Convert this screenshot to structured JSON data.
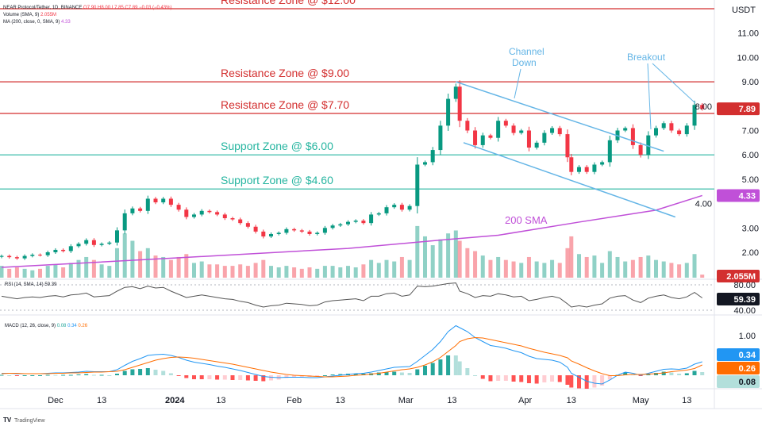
{
  "header": {
    "symbol_line": "NEAR Protocol/Tether, 1D, BINANCE",
    "ohlc": "O7.90 H8.00 L7.85 C7.89 −0.03 (−0.43%)",
    "volume_legend": "Volume (SMA, 9)",
    "volume_value": "2.055M",
    "ma_legend": "MA (200, close, 0, SMA, 9)",
    "ma_value": "4.33",
    "rsi_legend": "RSI (14, SMA, 14)",
    "rsi_value": "59.39",
    "macd_legend": "MACD (12, 26, close, 9)",
    "macd_hist_value": "0.08",
    "macd_value": "0.34",
    "signal_value": "0.26"
  },
  "currency": "USDT",
  "footer": {
    "brand": "TradingView"
  },
  "colors": {
    "up": "#089981",
    "down": "#f23645",
    "sma": "#c050d8",
    "resistance": "#d32f2f",
    "support": "#26b5a0",
    "annotation": "#64b5e6",
    "rsi": "#555555",
    "macd": "#2196f3",
    "signal": "#ff6d00"
  },
  "chart_data": {
    "type": "candlestick",
    "price_axis": {
      "ticks": [
        "11.00",
        "10.00",
        "9.00",
        "8.00",
        "7.00",
        "6.00",
        "5.00",
        "4.00",
        "3.00",
        "2.00"
      ],
      "range": [
        1.2,
        12.4
      ]
    },
    "time_axis": [
      {
        "date": "2023-12-01",
        "label": "Dec"
      },
      {
        "date": "2023-12-13",
        "label": "13"
      },
      {
        "date": "2024-01-01",
        "label": "2024"
      },
      {
        "date": "2024-01-13",
        "label": "13"
      },
      {
        "date": "2024-02-01",
        "label": "Feb"
      },
      {
        "date": "2024-02-13",
        "label": "13"
      },
      {
        "date": "2024-03-01",
        "label": "Mar"
      },
      {
        "date": "2024-03-13",
        "label": "13"
      },
      {
        "date": "2024-04-01",
        "label": "Apr"
      },
      {
        "date": "2024-04-13",
        "label": "13"
      },
      {
        "date": "2024-05-01",
        "label": "May"
      },
      {
        "date": "2024-05-13",
        "label": "13"
      }
    ],
    "columns": [
      "date",
      "close",
      "volume_m",
      "rsi",
      "macd",
      "signal"
    ],
    "rows": [
      [
        "2023-11-17",
        1.85,
        8,
        62,
        0.05,
        0.04
      ],
      [
        "2023-11-19",
        1.8,
        6,
        60,
        0.05,
        0.05
      ],
      [
        "2023-11-21",
        1.75,
        7,
        58,
        0.04,
        0.05
      ],
      [
        "2023-11-23",
        1.85,
        6,
        60,
        0.04,
        0.04
      ],
      [
        "2023-11-25",
        1.9,
        5,
        61,
        0.04,
        0.04
      ],
      [
        "2023-11-27",
        1.88,
        6,
        60,
        0.04,
        0.04
      ],
      [
        "2023-11-29",
        2.0,
        8,
        62,
        0.05,
        0.04
      ],
      [
        "2023-12-01",
        2.1,
        9,
        63,
        0.06,
        0.05
      ],
      [
        "2023-12-03",
        2.05,
        7,
        61,
        0.06,
        0.05
      ],
      [
        "2023-12-05",
        2.25,
        10,
        64,
        0.07,
        0.06
      ],
      [
        "2023-12-07",
        2.35,
        12,
        65,
        0.08,
        0.06
      ],
      [
        "2023-12-09",
        2.5,
        14,
        67,
        0.1,
        0.07
      ],
      [
        "2023-12-11",
        2.3,
        12,
        61,
        0.09,
        0.08
      ],
      [
        "2023-12-13",
        2.35,
        9,
        62,
        0.09,
        0.08
      ],
      [
        "2023-12-15",
        2.4,
        8,
        63,
        0.09,
        0.09
      ],
      [
        "2023-12-17",
        2.9,
        20,
        70,
        0.14,
        0.1
      ],
      [
        "2023-12-19",
        3.6,
        30,
        76,
        0.25,
        0.14
      ],
      [
        "2023-12-21",
        3.8,
        25,
        77,
        0.35,
        0.2
      ],
      [
        "2023-12-23",
        3.7,
        18,
        74,
        0.42,
        0.26
      ],
      [
        "2023-12-25",
        4.2,
        20,
        78,
        0.5,
        0.32
      ],
      [
        "2023-12-27",
        4.05,
        15,
        75,
        0.52,
        0.38
      ],
      [
        "2023-12-29",
        4.2,
        14,
        76,
        0.53,
        0.42
      ],
      [
        "2023-12-31",
        3.95,
        12,
        70,
        0.5,
        0.45
      ],
      [
        "2024-01-02",
        3.75,
        14,
        65,
        0.45,
        0.46
      ],
      [
        "2024-01-04",
        3.45,
        16,
        60,
        0.38,
        0.45
      ],
      [
        "2024-01-06",
        3.55,
        10,
        62,
        0.33,
        0.43
      ],
      [
        "2024-01-08",
        3.7,
        11,
        64,
        0.3,
        0.4
      ],
      [
        "2024-01-10",
        3.65,
        9,
        62,
        0.27,
        0.37
      ],
      [
        "2024-01-12",
        3.55,
        9,
        60,
        0.23,
        0.34
      ],
      [
        "2024-01-14",
        3.4,
        8,
        58,
        0.2,
        0.31
      ],
      [
        "2024-01-16",
        3.35,
        8,
        57,
        0.16,
        0.28
      ],
      [
        "2024-01-18",
        3.2,
        9,
        54,
        0.12,
        0.24
      ],
      [
        "2024-01-20",
        3.05,
        8,
        52,
        0.07,
        0.2
      ],
      [
        "2024-01-22",
        2.85,
        10,
        48,
        0.02,
        0.16
      ],
      [
        "2024-01-24",
        2.65,
        12,
        45,
        -0.03,
        0.12
      ],
      [
        "2024-01-26",
        2.75,
        8,
        47,
        -0.05,
        0.08
      ],
      [
        "2024-01-28",
        2.8,
        7,
        48,
        -0.06,
        0.05
      ],
      [
        "2024-01-30",
        2.95,
        8,
        51,
        -0.05,
        0.02
      ],
      [
        "2024-02-01",
        2.9,
        7,
        50,
        -0.05,
        0.0
      ],
      [
        "2024-02-03",
        2.85,
        6,
        49,
        -0.05,
        -0.01
      ],
      [
        "2024-02-05",
        2.75,
        7,
        47,
        -0.06,
        -0.02
      ],
      [
        "2024-02-07",
        2.8,
        6,
        48,
        -0.06,
        -0.03
      ],
      [
        "2024-02-09",
        3.0,
        8,
        53,
        -0.04,
        -0.04
      ],
      [
        "2024-02-11",
        3.1,
        8,
        55,
        -0.02,
        -0.04
      ],
      [
        "2024-02-13",
        3.15,
        7,
        56,
        0.0,
        -0.03
      ],
      [
        "2024-02-15",
        3.25,
        8,
        57,
        0.02,
        -0.02
      ],
      [
        "2024-02-17",
        3.3,
        7,
        58,
        0.04,
        0.0
      ],
      [
        "2024-02-19",
        3.2,
        9,
        55,
        0.05,
        0.01
      ],
      [
        "2024-02-21",
        3.55,
        12,
        62,
        0.08,
        0.03
      ],
      [
        "2024-02-23",
        3.6,
        10,
        62,
        0.12,
        0.05
      ],
      [
        "2024-02-25",
        3.85,
        12,
        66,
        0.16,
        0.08
      ],
      [
        "2024-02-27",
        3.95,
        11,
        67,
        0.2,
        0.11
      ],
      [
        "2024-02-29",
        3.75,
        14,
        62,
        0.21,
        0.14
      ],
      [
        "2024-03-02",
        3.9,
        12,
        64,
        0.22,
        0.16
      ],
      [
        "2024-03-04",
        5.6,
        35,
        78,
        0.35,
        0.2
      ],
      [
        "2024-03-06",
        5.7,
        28,
        77,
        0.5,
        0.26
      ],
      [
        "2024-03-08",
        6.2,
        22,
        78,
        0.65,
        0.34
      ],
      [
        "2024-03-10",
        7.2,
        26,
        80,
        0.85,
        0.45
      ],
      [
        "2024-03-12",
        8.3,
        30,
        82,
        1.1,
        0.6
      ],
      [
        "2024-03-14",
        8.8,
        32,
        83,
        1.25,
        0.75
      ],
      [
        "2024-03-15",
        7.4,
        25,
        70,
        1.2,
        0.85
      ],
      [
        "2024-03-17",
        7.0,
        20,
        66,
        1.1,
        0.92
      ],
      [
        "2024-03-19",
        6.4,
        18,
        60,
        0.95,
        0.95
      ],
      [
        "2024-03-21",
        6.8,
        15,
        63,
        0.85,
        0.94
      ],
      [
        "2024-03-23",
        6.7,
        12,
        62,
        0.75,
        0.9
      ],
      [
        "2024-03-25",
        7.4,
        14,
        66,
        0.72,
        0.86
      ],
      [
        "2024-03-27",
        7.2,
        12,
        64,
        0.68,
        0.82
      ],
      [
        "2024-03-29",
        6.9,
        11,
        61,
        0.62,
        0.78
      ],
      [
        "2024-03-31",
        7.0,
        10,
        62,
        0.57,
        0.74
      ],
      [
        "2024-04-02",
        6.3,
        14,
        55,
        0.48,
        0.68
      ],
      [
        "2024-04-04",
        6.5,
        11,
        57,
        0.42,
        0.63
      ],
      [
        "2024-04-06",
        6.9,
        10,
        60,
        0.4,
        0.58
      ],
      [
        "2024-04-08",
        7.1,
        12,
        62,
        0.38,
        0.54
      ],
      [
        "2024-04-10",
        6.85,
        10,
        59,
        0.33,
        0.5
      ],
      [
        "2024-04-12",
        5.9,
        20,
        50,
        0.2,
        0.44
      ],
      [
        "2024-04-13",
        5.3,
        28,
        45,
        0.05,
        0.36
      ],
      [
        "2024-04-15",
        5.5,
        16,
        47,
        -0.05,
        0.28
      ],
      [
        "2024-04-17",
        5.3,
        14,
        45,
        -0.15,
        0.19
      ],
      [
        "2024-04-19",
        5.6,
        15,
        48,
        -0.2,
        0.11
      ],
      [
        "2024-04-21",
        5.7,
        10,
        50,
        -0.22,
        0.04
      ],
      [
        "2024-04-23",
        6.6,
        18,
        59,
        -0.12,
        -0.01
      ],
      [
        "2024-04-25",
        7.0,
        14,
        62,
        0.0,
        -0.01
      ],
      [
        "2024-04-27",
        7.1,
        11,
        63,
        0.08,
        0.01
      ],
      [
        "2024-04-29",
        6.4,
        12,
        56,
        0.05,
        0.02
      ],
      [
        "2024-05-01",
        6.0,
        14,
        52,
        0.0,
        0.02
      ],
      [
        "2024-05-03",
        6.8,
        15,
        59,
        0.05,
        0.03
      ],
      [
        "2024-05-05",
        7.1,
        12,
        62,
        0.1,
        0.04
      ],
      [
        "2024-05-07",
        7.3,
        11,
        64,
        0.15,
        0.06
      ],
      [
        "2024-05-09",
        7.0,
        10,
        60,
        0.16,
        0.09
      ],
      [
        "2024-05-11",
        6.85,
        9,
        58,
        0.15,
        0.11
      ],
      [
        "2024-05-13",
        7.2,
        10,
        61,
        0.18,
        0.13
      ],
      [
        "2024-05-15",
        8.05,
        16,
        68,
        0.28,
        0.17
      ],
      [
        "2024-05-17",
        7.89,
        2.055,
        59.39,
        0.34,
        0.26
      ]
    ],
    "sma200": [
      [
        "2023-11-17",
        1.38
      ],
      [
        "2024-01-05",
        1.8
      ],
      [
        "2024-02-15",
        2.16
      ],
      [
        "2024-03-10",
        2.5
      ],
      [
        "2024-03-25",
        2.7
      ],
      [
        "2024-04-15",
        3.24
      ],
      [
        "2024-05-05",
        3.73
      ],
      [
        "2024-05-17",
        4.33
      ]
    ],
    "sma_label": "200 SMA",
    "last_price_label": "7.89",
    "sma_price_label": "4.33",
    "volume_label": "2.055M",
    "rsi_axis": {
      "ticks": [
        "80.00",
        "40.00"
      ],
      "current": "59.39"
    },
    "macd_axis": {
      "ticks": [
        "1.00"
      ],
      "macd_label": "0.34",
      "signal_label": "0.26",
      "hist_label": "0.08"
    },
    "zones": [
      {
        "label": "Resistance Zone @ $12.00",
        "price": 12.0,
        "kind": "resistance"
      },
      {
        "label": "Resistance Zone @ $9.00",
        "price": 9.0,
        "kind": "resistance"
      },
      {
        "label": "Resistance Zone @ $7.70",
        "price": 7.7,
        "kind": "resistance"
      },
      {
        "label": "Support Zone @ $6.00",
        "price": 6.0,
        "kind": "support"
      },
      {
        "label": "Support Zone @ $4.60",
        "price": 4.6,
        "kind": "support"
      }
    ],
    "channel": {
      "upper": [
        [
          "2024-03-14",
          9.0
        ],
        [
          "2024-05-07",
          6.15
        ]
      ],
      "lower": [
        [
          "2024-03-16",
          6.5
        ],
        [
          "2024-05-10",
          3.45
        ]
      ],
      "label_line1": "Channel",
      "label_line2": "Down"
    },
    "breakout_label": "Breakout"
  }
}
